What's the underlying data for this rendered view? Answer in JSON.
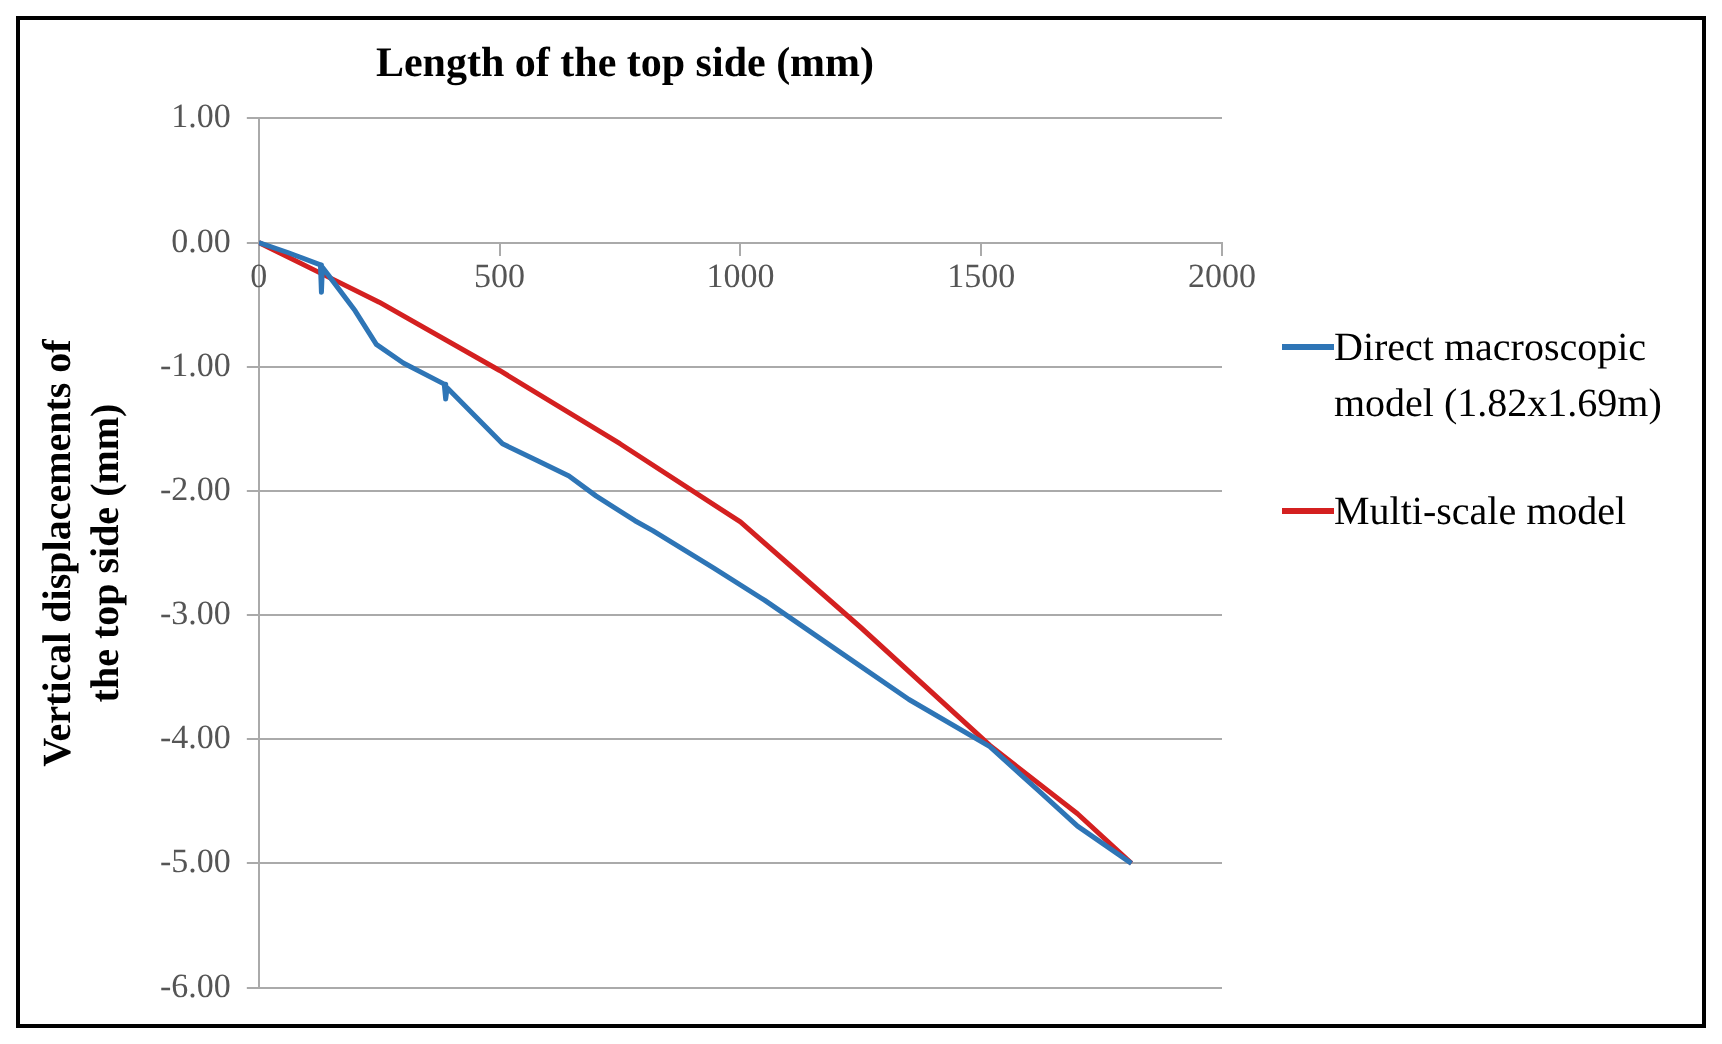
{
  "chart_data": {
    "type": "line",
    "xlabel": "Length of the top side (mm)",
    "ylabel": "Vertical displacements of the top side (mm)",
    "xlim": [
      0,
      2000
    ],
    "xticks": [
      0,
      500,
      1000,
      1500,
      2000
    ],
    "ylim": [
      -6,
      1
    ],
    "yticks": [
      {
        "value": 1,
        "label": "1.00"
      },
      {
        "value": 0,
        "label": "0.00"
      },
      {
        "value": -1,
        "label": "-1.00"
      },
      {
        "value": -2,
        "label": "-2.00"
      },
      {
        "value": -3,
        "label": "-3.00"
      },
      {
        "value": -4,
        "label": "-4.00"
      },
      {
        "value": -5,
        "label": "-5.00"
      },
      {
        "value": -6,
        "label": "-6.00"
      }
    ],
    "grid": "y",
    "legend": "right",
    "marker": "none",
    "line_style": "solid",
    "series": [
      {
        "name": "Direct macroscopic model (1.82x1.69m)",
        "color": "#2e75b6",
        "x": [
          0,
          60,
          128,
          130,
          132,
          144,
          200,
          244,
          300,
          385,
          388,
          391,
          450,
          506,
          580,
          644,
          700,
          781,
          818,
          944,
          1050,
          1200,
          1350,
          1518,
          1618,
          1700,
          1812
        ],
        "values": [
          0,
          -0.08,
          -0.18,
          -0.4,
          -0.2,
          -0.26,
          -0.55,
          -0.82,
          -0.97,
          -1.14,
          -1.26,
          -1.17,
          -1.4,
          -1.62,
          -1.76,
          -1.88,
          -2.04,
          -2.24,
          -2.32,
          -2.62,
          -2.88,
          -3.28,
          -3.68,
          -4.06,
          -4.41,
          -4.7,
          -5.0
        ]
      },
      {
        "name": "Multi-scale model",
        "color": "#d42020",
        "x": [
          0,
          125,
          250,
          500,
          750,
          1000,
          1250,
          1518,
          1700,
          1812
        ],
        "values": [
          0,
          -0.24,
          -0.48,
          -1.03,
          -1.62,
          -2.25,
          -3.1,
          -4.05,
          -4.6,
          -5.0
        ]
      }
    ]
  }
}
